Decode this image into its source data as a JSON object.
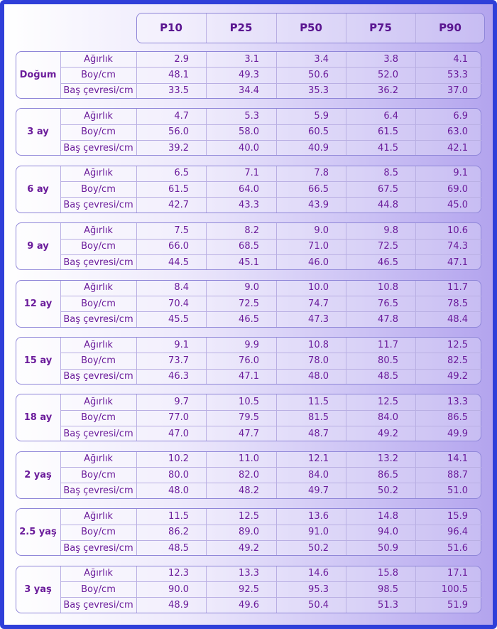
{
  "header": {
    "columns": [
      "P10",
      "P25",
      "P50",
      "P75",
      "P90"
    ]
  },
  "measures": [
    "Ağırlık",
    "Boy/cm",
    "Baş çevresi/cm"
  ],
  "groups": [
    {
      "label": "Doğum",
      "rows": [
        [
          "2.9",
          "3.1",
          "3.4",
          "3.8",
          "4.1"
        ],
        [
          "48.1",
          "49.3",
          "50.6",
          "52.0",
          "53.3"
        ],
        [
          "33.5",
          "34.4",
          "35.3",
          "36.2",
          "37.0"
        ]
      ]
    },
    {
      "label": "3 ay",
      "rows": [
        [
          "4.7",
          "5.3",
          "5.9",
          "6.4",
          "6.9"
        ],
        [
          "56.0",
          "58.0",
          "60.5",
          "61.5",
          "63.0"
        ],
        [
          "39.2",
          "40.0",
          "40.9",
          "41.5",
          "42.1"
        ]
      ]
    },
    {
      "label": "6 ay",
      "rows": [
        [
          "6.5",
          "7.1",
          "7.8",
          "8.5",
          "9.1"
        ],
        [
          "61.5",
          "64.0",
          "66.5",
          "67.5",
          "69.0"
        ],
        [
          "42.7",
          "43.3",
          "43.9",
          "44.8",
          "45.0"
        ]
      ]
    },
    {
      "label": "9 ay",
      "rows": [
        [
          "7.5",
          "8.2",
          "9.0",
          "9.8",
          "10.6"
        ],
        [
          "66.0",
          "68.5",
          "71.0",
          "72.5",
          "74.3"
        ],
        [
          "44.5",
          "45.1",
          "46.0",
          "46.5",
          "47.1"
        ]
      ]
    },
    {
      "label": "12 ay",
      "rows": [
        [
          "8.4",
          "9.0",
          "10.0",
          "10.8",
          "11.7"
        ],
        [
          "70.4",
          "72.5",
          "74.7",
          "76.5",
          "78.5"
        ],
        [
          "45.5",
          "46.5",
          "47.3",
          "47.8",
          "48.4"
        ]
      ]
    },
    {
      "label": "15 ay",
      "rows": [
        [
          "9.1",
          "9.9",
          "10.8",
          "11.7",
          "12.5"
        ],
        [
          "73.7",
          "76.0",
          "78.0",
          "80.5",
          "82.5"
        ],
        [
          "46.3",
          "47.1",
          "48.0",
          "48.5",
          "49.2"
        ]
      ]
    },
    {
      "label": "18 ay",
      "rows": [
        [
          "9.7",
          "10.5",
          "11.5",
          "12.5",
          "13.3"
        ],
        [
          "77.0",
          "79.5",
          "81.5",
          "84.0",
          "86.5"
        ],
        [
          "47.0",
          "47.7",
          "48.7",
          "49.2",
          "49.9"
        ]
      ]
    },
    {
      "label": "2 yaş",
      "rows": [
        [
          "10.2",
          "11.0",
          "12.1",
          "13.2",
          "14.1"
        ],
        [
          "80.0",
          "82.0",
          "84.0",
          "86.5",
          "88.7"
        ],
        [
          "48.0",
          "48.2",
          "49.7",
          "50.2",
          "51.0"
        ]
      ]
    },
    {
      "label": "2.5 yaş",
      "rows": [
        [
          "11.5",
          "12.5",
          "13.6",
          "14.8",
          "15.9"
        ],
        [
          "86.2",
          "89.0",
          "91.0",
          "94.0",
          "96.4"
        ],
        [
          "48.5",
          "49.2",
          "50.2",
          "50.9",
          "51.6"
        ]
      ]
    },
    {
      "label": "3 yaş",
      "rows": [
        [
          "12.3",
          "13.3",
          "14.6",
          "15.8",
          "17.1"
        ],
        [
          "90.0",
          "92.5",
          "95.3",
          "98.5",
          "100.5"
        ],
        [
          "48.9",
          "49.6",
          "50.4",
          "51.3",
          "51.9"
        ]
      ]
    }
  ]
}
